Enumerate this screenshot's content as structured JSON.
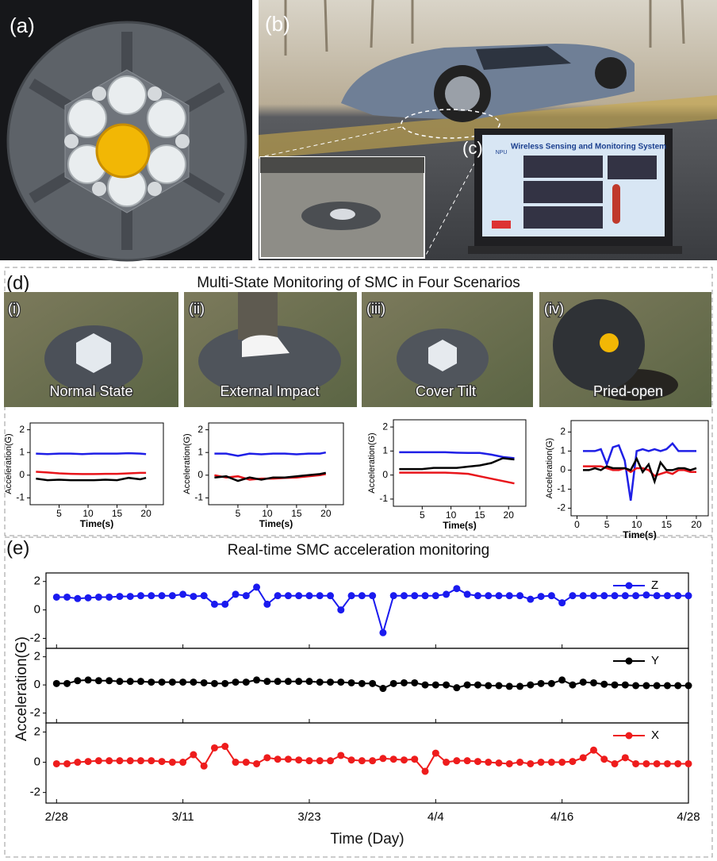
{
  "panels": {
    "a": "(a)",
    "b": "(b)",
    "c": "(c)",
    "d": "(d)",
    "e": "(e)"
  },
  "screen": {
    "title": "Wireless Sensing and Monitoring System",
    "logo": "NPU"
  },
  "panel_d": {
    "title": "Multi-State Monitoring of SMC in Four Scenarios",
    "scenarios": [
      {
        "tag": "(i)",
        "label": "Normal State"
      },
      {
        "tag": "(ii)",
        "label": "External Impact"
      },
      {
        "tag": "(iii)",
        "label": "Cover Tilt"
      },
      {
        "tag": "(iv)",
        "label": "Pried-open"
      }
    ]
  },
  "panel_e": {
    "title": "Real-time SMC acceleration monitoring",
    "xlabel": "Time (Day)",
    "ylabel": "Acceleration(G)"
  },
  "chart_data": [
    {
      "type": "line",
      "xlabel": "Time(s)",
      "ylabel": "Acceleration(G)",
      "x": [
        1,
        3,
        5,
        7,
        9,
        11,
        13,
        15,
        17,
        19,
        20
      ],
      "series": [
        {
          "color": "#1f1fe6",
          "values": [
            0.95,
            0.93,
            0.95,
            0.95,
            0.93,
            0.95,
            0.95,
            0.95,
            0.97,
            0.95,
            0.93
          ]
        },
        {
          "color": "#e8151b",
          "values": [
            0.15,
            0.12,
            0.08,
            0.06,
            0.05,
            0.05,
            0.06,
            0.06,
            0.08,
            0.1,
            0.1
          ]
        },
        {
          "color": "#000000",
          "values": [
            -0.15,
            -0.22,
            -0.2,
            -0.22,
            -0.22,
            -0.22,
            -0.2,
            -0.22,
            -0.12,
            -0.18,
            -0.12
          ]
        }
      ],
      "xlim": [
        0,
        23
      ],
      "ylim": [
        -1.3,
        2.3
      ],
      "xticks": [
        5,
        10,
        15,
        20
      ],
      "yticks": [
        -1,
        0,
        1,
        2
      ]
    },
    {
      "type": "line",
      "xlabel": "Time(s)",
      "ylabel": "Acceleration(G)",
      "x": [
        1,
        3,
        5,
        7,
        9,
        11,
        13,
        15,
        17,
        19,
        20
      ],
      "series": [
        {
          "color": "#1f1fe6",
          "values": [
            0.95,
            0.95,
            0.85,
            0.95,
            0.92,
            0.95,
            0.95,
            0.92,
            0.95,
            0.95,
            1.0
          ]
        },
        {
          "color": "#e8151b",
          "values": [
            0.0,
            -0.1,
            -0.05,
            -0.2,
            -0.15,
            -0.15,
            -0.12,
            -0.1,
            -0.05,
            0.0,
            0.05
          ]
        },
        {
          "color": "#000000",
          "values": [
            -0.1,
            -0.05,
            -0.25,
            -0.1,
            -0.2,
            -0.1,
            -0.1,
            -0.05,
            0.0,
            0.05,
            0.1
          ]
        }
      ],
      "xlim": [
        0,
        23
      ],
      "ylim": [
        -1.3,
        2.3
      ],
      "xticks": [
        5,
        10,
        15,
        20
      ],
      "yticks": [
        -1,
        0,
        1,
        2
      ]
    },
    {
      "type": "line",
      "xlabel": "Time(s)",
      "ylabel": "Acceleration(G)",
      "x": [
        1,
        3,
        5,
        7,
        9,
        11,
        13,
        15,
        17,
        19,
        21
      ],
      "series": [
        {
          "color": "#1f1fe6",
          "values": [
            0.95,
            0.95,
            0.95,
            0.95,
            0.95,
            0.93,
            0.92,
            0.92,
            0.85,
            0.75,
            0.7
          ]
        },
        {
          "color": "#e8151b",
          "values": [
            0.1,
            0.1,
            0.1,
            0.1,
            0.1,
            0.08,
            0.05,
            -0.05,
            -0.15,
            -0.25,
            -0.35
          ]
        },
        {
          "color": "#000000",
          "values": [
            0.25,
            0.25,
            0.25,
            0.3,
            0.3,
            0.3,
            0.35,
            0.4,
            0.5,
            0.7,
            0.65
          ]
        }
      ],
      "xlim": [
        0,
        23
      ],
      "ylim": [
        -1.3,
        2.3
      ],
      "xticks": [
        5,
        10,
        15,
        20
      ],
      "yticks": [
        -1,
        0,
        1,
        2
      ]
    },
    {
      "type": "line",
      "xlabel": "Time(s)",
      "ylabel": "Acceleration(G)",
      "x": [
        1,
        2,
        3,
        4,
        5,
        6,
        7,
        8,
        9,
        10,
        11,
        12,
        13,
        14,
        15,
        16,
        17,
        18,
        19,
        20
      ],
      "series": [
        {
          "color": "#1f1fe6",
          "values": [
            1,
            1,
            1,
            1.1,
            0.3,
            1.2,
            1.3,
            0.5,
            -1.6,
            1.0,
            1.1,
            1.0,
            1.1,
            1.0,
            1.1,
            1.4,
            1.0,
            1.0,
            1.0,
            1.0
          ]
        },
        {
          "color": "#e8151b",
          "values": [
            0.2,
            0.2,
            0.2,
            0.2,
            0.1,
            0.0,
            0.0,
            0.1,
            -0.1,
            0.1,
            0.1,
            0.0,
            -0.3,
            -0.2,
            -0.1,
            -0.2,
            0.0,
            0.0,
            -0.1,
            -0.1
          ]
        },
        {
          "color": "#000000",
          "values": [
            0,
            0,
            0.1,
            0.0,
            0.2,
            0.1,
            0.1,
            0.1,
            0.0,
            0.6,
            -0.1,
            0.3,
            -0.6,
            0.4,
            0.0,
            0.0,
            0.1,
            0.1,
            0.0,
            0.1
          ]
        }
      ],
      "xlim": [
        -1,
        22
      ],
      "ylim": [
        -2.4,
        2.6
      ],
      "xticks": [
        0,
        5,
        10,
        15,
        20
      ],
      "yticks": [
        -2,
        -1,
        0,
        1,
        2
      ]
    },
    {
      "type": "line",
      "markers": true,
      "legend": "upper right",
      "x": [
        0,
        1,
        2,
        3,
        4,
        5,
        6,
        7,
        8,
        9,
        10,
        11,
        12,
        13,
        14,
        15,
        16,
        17,
        18,
        19,
        20,
        21,
        22,
        23,
        24,
        25,
        26,
        27,
        28,
        29,
        30,
        31,
        32,
        33,
        34,
        35,
        36,
        37,
        38,
        39,
        40,
        41,
        42,
        43,
        44,
        45,
        46,
        47,
        48,
        49,
        50,
        51,
        52,
        53,
        54,
        55,
        56,
        57,
        58,
        59,
        60
      ],
      "series": [
        {
          "name": "Z",
          "color": "#1a1aef",
          "values": [
            0.9,
            0.9,
            0.8,
            0.85,
            0.9,
            0.9,
            0.95,
            0.95,
            1.0,
            1.0,
            1.0,
            1.0,
            1.1,
            0.95,
            1.0,
            0.4,
            0.4,
            1.1,
            1.0,
            1.6,
            0.4,
            1.0,
            1.0,
            1.0,
            1.0,
            1.0,
            1.0,
            0.0,
            1.0,
            1.0,
            1.0,
            -1.6,
            1.0,
            1.0,
            1.0,
            1.0,
            1.0,
            1.1,
            1.5,
            1.1,
            1.0,
            1.0,
            1.0,
            1.0,
            1.0,
            0.75,
            0.95,
            1.0,
            0.5,
            1.0,
            1.0,
            1.0,
            1.0,
            1.0,
            1.0,
            1.0,
            1.05,
            1.0,
            1.0,
            1.0,
            1.0
          ]
        }
      ],
      "xlim": [
        -1,
        60
      ],
      "ylim": [
        -2.7,
        2.6
      ],
      "yticks": [
        -2,
        0,
        2
      ]
    },
    {
      "type": "line",
      "markers": true,
      "legend": "upper right",
      "x": [
        0,
        1,
        2,
        3,
        4,
        5,
        6,
        7,
        8,
        9,
        10,
        11,
        12,
        13,
        14,
        15,
        16,
        17,
        18,
        19,
        20,
        21,
        22,
        23,
        24,
        25,
        26,
        27,
        28,
        29,
        30,
        31,
        32,
        33,
        34,
        35,
        36,
        37,
        38,
        39,
        40,
        41,
        42,
        43,
        44,
        45,
        46,
        47,
        48,
        49,
        50,
        51,
        52,
        53,
        54,
        55,
        56,
        57,
        58,
        59,
        60
      ],
      "series": [
        {
          "name": "Y",
          "color": "#000000",
          "values": [
            0.1,
            0.1,
            0.3,
            0.35,
            0.3,
            0.3,
            0.25,
            0.25,
            0.25,
            0.2,
            0.2,
            0.2,
            0.2,
            0.2,
            0.15,
            0.1,
            0.1,
            0.2,
            0.2,
            0.35,
            0.25,
            0.25,
            0.25,
            0.25,
            0.25,
            0.2,
            0.2,
            0.2,
            0.15,
            0.1,
            0.1,
            -0.25,
            0.1,
            0.15,
            0.15,
            0.0,
            0.0,
            0.0,
            -0.2,
            0.0,
            0.0,
            -0.05,
            -0.05,
            -0.1,
            -0.1,
            0.0,
            0.1,
            0.1,
            0.35,
            0.0,
            0.2,
            0.15,
            0.05,
            0.0,
            0.0,
            -0.05,
            -0.05,
            -0.05,
            -0.05,
            -0.05,
            -0.05
          ]
        }
      ],
      "xlim": [
        -1,
        60
      ],
      "ylim": [
        -2.7,
        2.6
      ],
      "yticks": [
        -2,
        0,
        2
      ]
    },
    {
      "type": "line",
      "markers": true,
      "legend": "upper right",
      "x": [
        0,
        1,
        2,
        3,
        4,
        5,
        6,
        7,
        8,
        9,
        10,
        11,
        12,
        13,
        14,
        15,
        16,
        17,
        18,
        19,
        20,
        21,
        22,
        23,
        24,
        25,
        26,
        27,
        28,
        29,
        30,
        31,
        32,
        33,
        34,
        35,
        36,
        37,
        38,
        39,
        40,
        41,
        42,
        43,
        44,
        45,
        46,
        47,
        48,
        49,
        50,
        51,
        52,
        53,
        54,
        55,
        56,
        57,
        58,
        59,
        60
      ],
      "series": [
        {
          "name": "X",
          "color": "#ee1c1c",
          "values": [
            -0.1,
            -0.1,
            0.0,
            0.05,
            0.1,
            0.1,
            0.1,
            0.1,
            0.1,
            0.1,
            0.05,
            0.0,
            0.0,
            0.5,
            -0.25,
            0.95,
            1.05,
            0.0,
            0.0,
            -0.1,
            0.3,
            0.2,
            0.2,
            0.15,
            0.1,
            0.1,
            0.1,
            0.45,
            0.15,
            0.1,
            0.1,
            0.25,
            0.2,
            0.15,
            0.2,
            -0.6,
            0.6,
            0.0,
            0.1,
            0.1,
            0.05,
            0.0,
            -0.05,
            -0.1,
            0.0,
            -0.1,
            0.0,
            0.0,
            0.0,
            0.05,
            0.3,
            0.8,
            0.2,
            -0.1,
            0.3,
            -0.1,
            -0.1,
            -0.1,
            -0.1,
            -0.1,
            -0.1
          ]
        }
      ],
      "xlim": [
        -1,
        60
      ],
      "ylim": [
        -2.7,
        2.6
      ],
      "xticks": [
        {
          "value": 0,
          "label": "2/28"
        },
        {
          "value": 12,
          "label": "3/11"
        },
        {
          "value": 24,
          "label": "3/23"
        },
        {
          "value": 36,
          "label": "4/4"
        },
        {
          "value": 48,
          "label": "4/16"
        },
        {
          "value": 60,
          "label": "4/28"
        }
      ],
      "yticks": [
        -2,
        0,
        2
      ]
    }
  ]
}
